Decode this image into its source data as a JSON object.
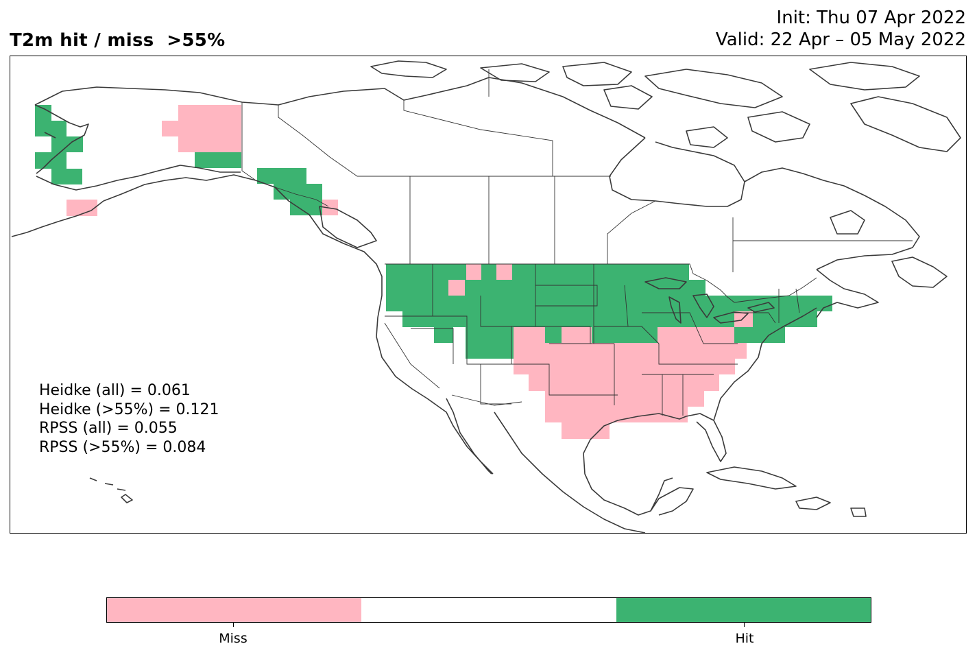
{
  "title": "T2m hit / miss  >55%",
  "init_label": "Init: Thu 07 Apr 2022",
  "valid_label": "Valid: 22 Apr – 05 May 2022",
  "scores": [
    "Heidke (all) = 0.061",
    "Heidke (>55%) = 0.121",
    "RPSS (all) = 0.055",
    "RPSS (>55%) = 0.084"
  ],
  "colors": {
    "miss": "#ffb6c1",
    "neutral": "#ffffff",
    "hit": "#3cb371",
    "coast": "#3a3a3a",
    "border": "#333333"
  },
  "legend": {
    "miss_label": "Miss",
    "hit_label": "Hit"
  }
}
